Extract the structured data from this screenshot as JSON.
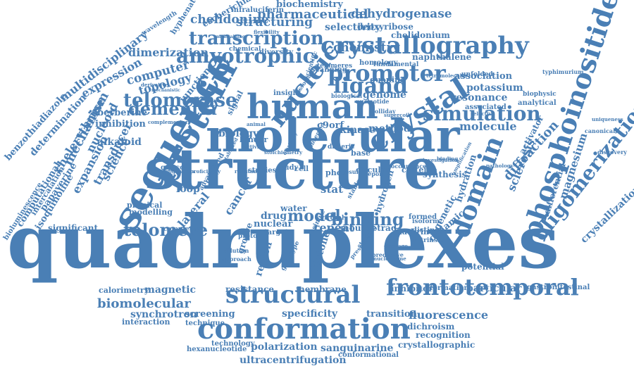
{
  "colors": {
    "word": "#4a7fb5",
    "background": "#ffffff"
  },
  "words": [
    "quadruplexes",
    "structure",
    "molecular",
    "sequence",
    "protein",
    "human",
    "crystal",
    "crystallography",
    "phosphoinositide",
    "conformation",
    "frontotemporal",
    "structural",
    "domain",
    "oligomerization",
    "promoter",
    "nucleic",
    "amyotrophic",
    "ligand",
    "simulation",
    "dementia",
    "telomerase",
    "transcription",
    "telomere",
    "binding",
    "model",
    "pharmaceutical",
    "biochemistry",
    "dehydrogenase",
    "deoxyribose",
    "chelidonium",
    "chelidonine",
    "escherichia",
    "infraluciferin",
    "hyphenated",
    "structuring",
    "selectivity",
    "chemistry",
    "naphthalene",
    "dimerization",
    "computer",
    "topology",
    "multidisciplinary",
    "expression",
    "berberine",
    "benzothiadiazole",
    "determination",
    "chelerythrine",
    "inhibition",
    "alkaloid",
    "mechanism",
    "nucleoid",
    "transducer",
    "science",
    "expansion",
    "junction",
    "biology",
    "association",
    "potassium",
    "resonance",
    "genome",
    "analytical",
    "biophysic",
    "diffraction",
    "activator",
    "sclerosis",
    "magnesium",
    "crystallization",
    "differential",
    "molecule",
    "method",
    "kinase",
    "c9orf",
    "synthesis",
    "hydrogen",
    "cysteine",
    "stat",
    "cancer",
    "lateral",
    "loop",
    "drug",
    "nuclear",
    "water",
    "mouse",
    "tetrad",
    "repeat",
    "histone",
    "region",
    "groove",
    "clathrin",
    "dynamic",
    "genetic",
    "hydration",
    "potential",
    "particular",
    "inhibitor",
    "formation",
    "gastrointestinal",
    "magnetic",
    "calorimetry",
    "resistance",
    "membrane",
    "biomolecular",
    "screening",
    "specificity",
    "transition",
    "fluorescence",
    "dichroism",
    "recognition",
    "synchrotron",
    "interaction",
    "technique",
    "polarization",
    "sanguinarine",
    "crystallographic",
    "hexanucleotide",
    "technology",
    "conformational",
    "ultracentrifugation",
    "bioluminescence",
    "computational",
    "intercalation",
    "papaverine",
    "isoquinoline",
    "significant",
    "physical",
    "modelling",
    "complete",
    "gggcc",
    "virtual",
    "base",
    "phox",
    "cell",
    "study",
    "studies",
    "binder",
    "circular",
    "guanine",
    "homology",
    "insight",
    "scanning",
    "signal",
    "diversity",
    "chemical",
    "telomeres",
    "wavelength",
    "fundamental",
    "canonical",
    "discovery",
    "oriented",
    "genotype",
    "formed",
    "intrinsic",
    "distinct",
    "isoform",
    "uniqueness",
    "typhimurium",
    "tetramolecular",
    "associated",
    "dimeric",
    "advance",
    "occurrence",
    "stable",
    "single",
    "target",
    "proto",
    "dilution",
    "approach",
    "predictive",
    "presence",
    "stacking",
    "unfolded",
    "association",
    "biological",
    "nucleotide",
    "holliday",
    "scientific",
    "flexibility",
    "maintaining",
    "complementary",
    "derivative",
    "mechanistic",
    "homogeneous",
    "proficiency",
    "resistant",
    "result",
    "report",
    "observed",
    "activity",
    "animal",
    "stabilized",
    "elasticity",
    "stoichiometry",
    "nucleosome",
    "cleavage",
    "supercoil",
    "selective",
    "investigation",
    "binding",
    "amplification",
    "pathology",
    "replication"
  ]
}
